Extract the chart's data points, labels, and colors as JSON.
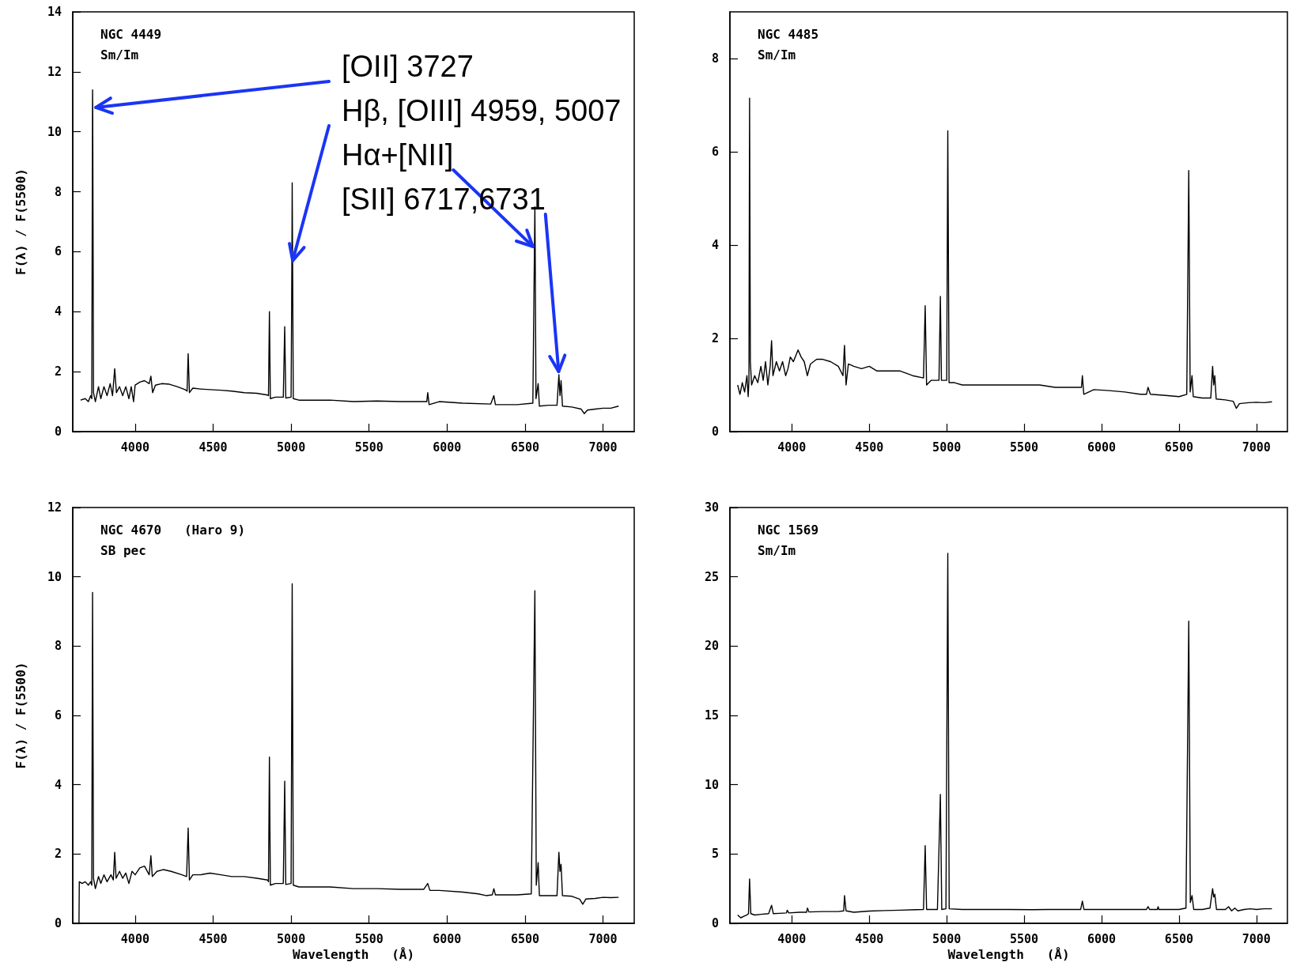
{
  "chart_data": [
    {
      "type": "line",
      "annotations": [
        "NGC 4449",
        "Sm/Im",
        {
          "text": "[OII] 3727",
          "x": 3728,
          "y": 10.8
        },
        {
          "text": "Hβ, [OIII] 4959, 5007",
          "x": 5005,
          "y": 5.6
        },
        {
          "text": "Hα+[NII]",
          "x": 6565,
          "y": 6.1
        },
        {
          "text": "[SII] 6717,6731",
          "x": 6717,
          "y": 1.9
        }
      ],
      "ylabel": "F(λ) / F(5500)",
      "xlim": [
        3600,
        7200
      ],
      "xticks": [
        4000,
        4500,
        5000,
        5500,
        6000,
        6500,
        7000
      ],
      "ylim": [
        0,
        14
      ],
      "yticks": [
        0,
        2,
        4,
        6,
        8,
        10,
        12,
        14
      ],
      "series": [
        {
          "color": "#000000",
          "x": [
            3650,
            3680,
            3700,
            3715,
            3722,
            3727,
            3728,
            3733,
            3745,
            3765,
            3780,
            3800,
            3820,
            3840,
            3855,
            3869,
            3880,
            3900,
            3920,
            3940,
            3960,
            3975,
            3990,
            4000,
            4030,
            4060,
            4090,
            4101,
            4112,
            4130,
            4170,
            4220,
            4270,
            4320,
            4333,
            4340,
            4348,
            4370,
            4420,
            4480,
            4550,
            4620,
            4700,
            4780,
            4850,
            4855,
            4861,
            4867,
            4900,
            4950,
            4959,
            4966,
            5000,
            5005,
            5007,
            5014,
            5050,
            5150,
            5250,
            5400,
            5550,
            5700,
            5870,
            5876,
            5885,
            5950,
            6100,
            6280,
            6300,
            6310,
            6450,
            6550,
            6563,
            6565,
            6570,
            6584,
            6592,
            6650,
            6705,
            6717,
            6724,
            6731,
            6740,
            6800,
            6860,
            6880,
            6900,
            6950,
            7000,
            7050,
            7100
          ],
          "values": [
            1.05,
            1.1,
            1.0,
            1.2,
            1.1,
            11.4,
            10.8,
            1.3,
            1.0,
            1.5,
            1.1,
            1.5,
            1.2,
            1.6,
            1.2,
            2.1,
            1.3,
            1.5,
            1.2,
            1.5,
            1.1,
            1.5,
            1.0,
            1.55,
            1.65,
            1.7,
            1.6,
            1.85,
            1.3,
            1.55,
            1.6,
            1.58,
            1.5,
            1.4,
            1.35,
            2.6,
            1.3,
            1.45,
            1.42,
            1.4,
            1.38,
            1.35,
            1.3,
            1.28,
            1.22,
            1.2,
            4.0,
            1.1,
            1.15,
            1.15,
            3.5,
            1.12,
            1.15,
            5.6,
            8.3,
            1.1,
            1.05,
            1.05,
            1.05,
            1.0,
            1.02,
            1.0,
            1.0,
            1.3,
            0.9,
            1.0,
            0.95,
            0.92,
            1.2,
            0.9,
            0.9,
            0.95,
            7.5,
            6.1,
            1.1,
            1.6,
            0.85,
            0.88,
            0.88,
            1.9,
            1.2,
            1.7,
            0.85,
            0.82,
            0.75,
            0.6,
            0.72,
            0.75,
            0.78,
            0.78,
            0.85
          ]
        }
      ]
    },
    {
      "type": "line",
      "annotations": [
        "NGC 4485",
        "Sm/Im"
      ],
      "xlim": [
        3600,
        7200
      ],
      "xticks": [
        4000,
        4500,
        5000,
        5500,
        6000,
        6500,
        7000
      ],
      "ylim": [
        0,
        9
      ],
      "yticks": [
        0,
        2,
        4,
        6,
        8
      ],
      "series": [
        {
          "color": "#000000",
          "x": [
            3650,
            3665,
            3680,
            3695,
            3710,
            3718,
            3723,
            3727,
            3732,
            3740,
            3760,
            3780,
            3800,
            3815,
            3830,
            3845,
            3860,
            3869,
            3878,
            3900,
            3920,
            3940,
            3960,
            3975,
            3990,
            4010,
            4040,
            4060,
            4080,
            4100,
            4120,
            4160,
            4200,
            4250,
            4300,
            4330,
            4340,
            4350,
            4365,
            4400,
            4450,
            4500,
            4550,
            4600,
            4700,
            4780,
            4850,
            4861,
            4870,
            4900,
            4950,
            4959,
            4966,
            5000,
            5007,
            5015,
            5050,
            5100,
            5200,
            5300,
            5400,
            5500,
            5600,
            5700,
            5800,
            5870,
            5876,
            5885,
            5950,
            6050,
            6150,
            6250,
            6290,
            6300,
            6315,
            6400,
            6500,
            6550,
            6563,
            6572,
            6584,
            6592,
            6650,
            6705,
            6717,
            6724,
            6731,
            6740,
            6800,
            6850,
            6870,
            6890,
            6950,
            7000,
            7050,
            7100
          ],
          "values": [
            1.0,
            0.8,
            1.05,
            0.85,
            1.2,
            0.75,
            1.1,
            7.15,
            1.5,
            1.0,
            1.2,
            1.05,
            1.4,
            1.1,
            1.5,
            1.0,
            1.4,
            1.95,
            1.2,
            1.5,
            1.3,
            1.5,
            1.2,
            1.35,
            1.6,
            1.5,
            1.75,
            1.6,
            1.5,
            1.2,
            1.45,
            1.55,
            1.55,
            1.5,
            1.4,
            1.2,
            1.85,
            1.0,
            1.45,
            1.4,
            1.35,
            1.4,
            1.3,
            1.3,
            1.3,
            1.2,
            1.15,
            2.7,
            1.0,
            1.1,
            1.1,
            2.9,
            1.1,
            1.1,
            6.45,
            1.05,
            1.05,
            1.0,
            1.0,
            1.0,
            1.0,
            1.0,
            1.0,
            0.95,
            0.95,
            0.95,
            1.2,
            0.8,
            0.9,
            0.88,
            0.85,
            0.8,
            0.8,
            0.95,
            0.8,
            0.78,
            0.75,
            0.8,
            5.6,
            0.85,
            1.2,
            0.75,
            0.72,
            0.72,
            1.4,
            1.0,
            1.2,
            0.7,
            0.68,
            0.65,
            0.5,
            0.6,
            0.62,
            0.63,
            0.62,
            0.64
          ]
        }
      ]
    },
    {
      "type": "line",
      "annotations": [
        "NGC 4670   (Haro 9)",
        "SB pec"
      ],
      "ylabel": "F(λ) / F(5500)",
      "xlabel": "Wavelength   (Å)",
      "xlim": [
        3600,
        7200
      ],
      "xticks": [
        4000,
        4500,
        5000,
        5500,
        6000,
        6500,
        7000
      ],
      "ylim": [
        0,
        12
      ],
      "yticks": [
        0,
        2,
        4,
        6,
        8,
        10,
        12
      ],
      "series": [
        {
          "color": "#000000",
          "x": [
            3640,
            3642,
            3660,
            3680,
            3700,
            3715,
            3722,
            3727,
            3733,
            3745,
            3765,
            3780,
            3800,
            3820,
            3845,
            3860,
            3869,
            3878,
            3900,
            3920,
            3940,
            3960,
            3980,
            4000,
            4030,
            4060,
            4090,
            4101,
            4110,
            4140,
            4180,
            4230,
            4300,
            4330,
            4340,
            4348,
            4370,
            4420,
            4480,
            4550,
            4620,
            4700,
            4780,
            4850,
            4855,
            4861,
            4867,
            4900,
            4950,
            4959,
            4966,
            5000,
            5007,
            5014,
            5050,
            5150,
            5250,
            5400,
            5550,
            5700,
            5850,
            5876,
            5890,
            5950,
            6100,
            6200,
            6250,
            6290,
            6300,
            6310,
            6450,
            6540,
            6563,
            6572,
            6584,
            6592,
            6650,
            6705,
            6717,
            6724,
            6731,
            6740,
            6800,
            6850,
            6870,
            6890,
            6950,
            7000,
            7050,
            7100
          ],
          "values": [
            0,
            1.2,
            1.15,
            1.2,
            1.1,
            1.2,
            1.1,
            9.55,
            1.3,
            1.0,
            1.35,
            1.15,
            1.4,
            1.2,
            1.4,
            1.25,
            2.05,
            1.3,
            1.5,
            1.3,
            1.45,
            1.15,
            1.5,
            1.4,
            1.6,
            1.65,
            1.4,
            1.95,
            1.35,
            1.5,
            1.55,
            1.5,
            1.4,
            1.35,
            2.75,
            1.25,
            1.4,
            1.4,
            1.45,
            1.4,
            1.35,
            1.35,
            1.3,
            1.25,
            1.2,
            4.8,
            1.1,
            1.15,
            1.15,
            4.1,
            1.12,
            1.15,
            9.8,
            1.1,
            1.05,
            1.05,
            1.05,
            1.0,
            1.0,
            0.98,
            0.98,
            1.15,
            0.95,
            0.95,
            0.9,
            0.85,
            0.8,
            0.82,
            1.0,
            0.82,
            0.82,
            0.85,
            9.6,
            1.1,
            1.75,
            0.8,
            0.8,
            0.8,
            2.05,
            1.5,
            1.7,
            0.8,
            0.78,
            0.7,
            0.55,
            0.7,
            0.72,
            0.75,
            0.74,
            0.75
          ]
        }
      ]
    },
    {
      "type": "line",
      "annotations": [
        "NGC 1569",
        "Sm/Im"
      ],
      "xlabel": "Wavelength   (Å)",
      "xlim": [
        3600,
        7200
      ],
      "xticks": [
        4000,
        4500,
        5000,
        5500,
        6000,
        6500,
        7000
      ],
      "ylim": [
        0,
        30
      ],
      "yticks": [
        0,
        5,
        10,
        15,
        20,
        25,
        30
      ],
      "series": [
        {
          "color": "#000000",
          "x": [
            3650,
            3670,
            3690,
            3710,
            3720,
            3727,
            3735,
            3760,
            3800,
            3850,
            3869,
            3880,
            3920,
            3965,
            3970,
            3980,
            4050,
            4095,
            4101,
            4110,
            4200,
            4300,
            4335,
            4340,
            4350,
            4400,
            4500,
            4600,
            4700,
            4800,
            4850,
            4861,
            4870,
            4940,
            4959,
            4968,
            4995,
            5007,
            5016,
            5100,
            5250,
            5400,
            5550,
            5650,
            5800,
            5865,
            5876,
            5886,
            6000,
            6150,
            6290,
            6300,
            6310,
            6360,
            6365,
            6370,
            6500,
            6545,
            6563,
            6573,
            6584,
            6595,
            6650,
            6700,
            6717,
            6724,
            6731,
            6742,
            6800,
            6820,
            6840,
            6860,
            6880,
            6920,
            6960,
            7000,
            7050,
            7100
          ],
          "values": [
            0.6,
            0.4,
            0.5,
            0.6,
            0.7,
            3.2,
            0.7,
            0.6,
            0.65,
            0.7,
            1.3,
            0.7,
            0.72,
            0.75,
            0.95,
            0.75,
            0.8,
            0.8,
            1.1,
            0.82,
            0.85,
            0.85,
            0.9,
            2.0,
            0.9,
            0.8,
            0.88,
            0.92,
            0.95,
            0.98,
            1.0,
            5.6,
            1.0,
            1.0,
            9.3,
            1.0,
            1.05,
            26.7,
            1.05,
            1.0,
            1.0,
            1.0,
            0.98,
            1.0,
            1.0,
            1.0,
            1.6,
            1.0,
            1.0,
            1.0,
            1.0,
            1.2,
            1.0,
            1.0,
            1.2,
            1.0,
            1.0,
            1.1,
            21.8,
            1.5,
            2.0,
            1.0,
            1.0,
            1.1,
            2.5,
            1.9,
            2.1,
            1.0,
            1.0,
            1.2,
            0.9,
            1.1,
            0.9,
            1.0,
            1.05,
            1.0,
            1.05,
            1.05
          ]
        }
      ]
    }
  ]
}
